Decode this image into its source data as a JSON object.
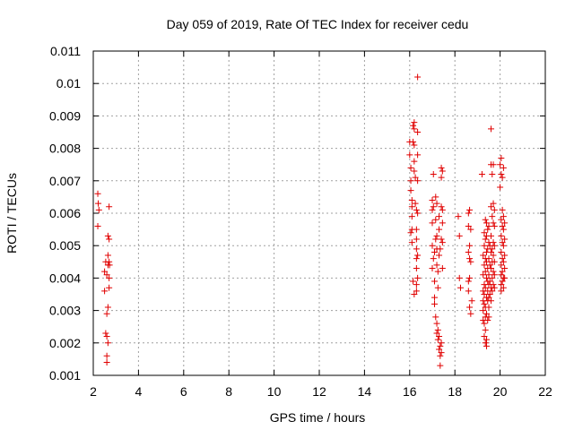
{
  "chart_data": {
    "type": "scatter",
    "title": "Day 059 of 2019, Rate Of TEC Index for receiver cedu",
    "xlabel": "GPS time / hours",
    "ylabel": "ROTI / TECUs",
    "xlim": [
      2,
      22
    ],
    "ylim": [
      0.001,
      0.011
    ],
    "xticks": [
      2,
      4,
      6,
      8,
      10,
      12,
      14,
      16,
      18,
      20,
      22
    ],
    "xtick_labels": [
      "2",
      "4",
      "6",
      "8",
      "10",
      "12",
      "14",
      "16",
      "18",
      "20",
      "22"
    ],
    "yticks": [
      0.001,
      0.002,
      0.003,
      0.004,
      0.005,
      0.006,
      0.007,
      0.008,
      0.009,
      0.01,
      0.011
    ],
    "ytick_labels": [
      "0.001",
      "0.002",
      "0.003",
      "0.004",
      "0.005",
      "0.006",
      "0.007",
      "0.008",
      "0.009",
      "0.01",
      "0.011"
    ],
    "grid": true,
    "marker": "+",
    "color": "#e00000",
    "series": [
      {
        "name": "ROTI",
        "points": [
          [
            2.2,
            0.0066
          ],
          [
            2.22,
            0.0063
          ],
          [
            2.25,
            0.0061
          ],
          [
            2.2,
            0.0056
          ],
          [
            2.5,
            0.0042
          ],
          [
            2.5,
            0.0036
          ],
          [
            2.55,
            0.0045
          ],
          [
            2.6,
            0.0041
          ],
          [
            2.55,
            0.0023
          ],
          [
            2.6,
            0.0022
          ],
          [
            2.6,
            0.0016
          ],
          [
            2.6,
            0.0014
          ],
          [
            2.65,
            0.0053
          ],
          [
            2.65,
            0.0047
          ],
          [
            2.65,
            0.0044
          ],
          [
            2.7,
            0.0062
          ],
          [
            2.7,
            0.0052
          ],
          [
            2.7,
            0.0045
          ],
          [
            2.7,
            0.004
          ],
          [
            2.7,
            0.0037
          ],
          [
            2.65,
            0.0031
          ],
          [
            2.6,
            0.0029
          ],
          [
            2.65,
            0.002
          ],
          [
            2.72,
            0.0044
          ],
          [
            16.0,
            0.0082
          ],
          [
            16.0,
            0.0078
          ],
          [
            16.05,
            0.0074
          ],
          [
            16.05,
            0.007
          ],
          [
            16.05,
            0.0067
          ],
          [
            16.1,
            0.0064
          ],
          [
            16.1,
            0.0062
          ],
          [
            16.1,
            0.0059
          ],
          [
            16.1,
            0.0055
          ],
          [
            16.05,
            0.0054
          ],
          [
            16.1,
            0.0051
          ],
          [
            16.15,
            0.0082
          ],
          [
            16.15,
            0.0087
          ],
          [
            16.2,
            0.0088
          ],
          [
            16.2,
            0.0086
          ],
          [
            16.2,
            0.0081
          ],
          [
            16.2,
            0.0076
          ],
          [
            16.2,
            0.0073
          ],
          [
            16.15,
            0.0039
          ],
          [
            16.2,
            0.0035
          ],
          [
            16.25,
            0.0071
          ],
          [
            16.25,
            0.0063
          ],
          [
            16.3,
            0.0061
          ],
          [
            16.3,
            0.0055
          ],
          [
            16.3,
            0.0052
          ],
          [
            16.3,
            0.0049
          ],
          [
            16.3,
            0.0046
          ],
          [
            16.3,
            0.0043
          ],
          [
            16.3,
            0.0038
          ],
          [
            16.3,
            0.0036
          ],
          [
            16.35,
            0.0102
          ],
          [
            16.35,
            0.0085
          ],
          [
            16.35,
            0.0078
          ],
          [
            16.35,
            0.007
          ],
          [
            16.35,
            0.006
          ],
          [
            16.35,
            0.0047
          ],
          [
            16.35,
            0.004
          ],
          [
            17.0,
            0.0064
          ],
          [
            17.0,
            0.0061
          ],
          [
            17.0,
            0.0057
          ],
          [
            17.0,
            0.005
          ],
          [
            17.0,
            0.0043
          ],
          [
            17.05,
            0.0072
          ],
          [
            17.05,
            0.0062
          ],
          [
            17.05,
            0.0046
          ],
          [
            17.1,
            0.0048
          ],
          [
            17.1,
            0.0039
          ],
          [
            17.1,
            0.0034
          ],
          [
            17.1,
            0.0032
          ],
          [
            17.15,
            0.0065
          ],
          [
            17.15,
            0.0058
          ],
          [
            17.15,
            0.0052
          ],
          [
            17.15,
            0.0028
          ],
          [
            17.2,
            0.0063
          ],
          [
            17.2,
            0.0053
          ],
          [
            17.2,
            0.0049
          ],
          [
            17.2,
            0.0044
          ],
          [
            17.2,
            0.0026
          ],
          [
            17.2,
            0.0023
          ],
          [
            17.25,
            0.0042
          ],
          [
            17.25,
            0.0037
          ],
          [
            17.25,
            0.0024
          ],
          [
            17.25,
            0.0021
          ],
          [
            17.3,
            0.0059
          ],
          [
            17.3,
            0.0055
          ],
          [
            17.3,
            0.0047
          ],
          [
            17.3,
            0.0022
          ],
          [
            17.3,
            0.0018
          ],
          [
            17.35,
            0.0049
          ],
          [
            17.35,
            0.0019
          ],
          [
            17.35,
            0.0016
          ],
          [
            17.35,
            0.0013
          ],
          [
            17.4,
            0.0074
          ],
          [
            17.4,
            0.0071
          ],
          [
            17.4,
            0.0062
          ],
          [
            17.4,
            0.0052
          ],
          [
            17.4,
            0.002
          ],
          [
            17.4,
            0.0017
          ],
          [
            17.45,
            0.0073
          ],
          [
            17.45,
            0.0061
          ],
          [
            17.45,
            0.0057
          ],
          [
            17.45,
            0.0051
          ],
          [
            17.45,
            0.0043
          ],
          [
            18.15,
            0.0059
          ],
          [
            18.2,
            0.0053
          ],
          [
            18.2,
            0.004
          ],
          [
            18.25,
            0.0037
          ],
          [
            18.6,
            0.006
          ],
          [
            18.6,
            0.0056
          ],
          [
            18.6,
            0.0048
          ],
          [
            18.6,
            0.0039
          ],
          [
            18.6,
            0.0036
          ],
          [
            18.65,
            0.0061
          ],
          [
            18.65,
            0.005
          ],
          [
            18.65,
            0.0046
          ],
          [
            18.65,
            0.004
          ],
          [
            18.65,
            0.0031
          ],
          [
            18.7,
            0.0055
          ],
          [
            18.7,
            0.0045
          ],
          [
            18.7,
            0.0029
          ],
          [
            18.75,
            0.0033
          ],
          [
            19.2,
            0.0072
          ],
          [
            19.25,
            0.0047
          ],
          [
            19.25,
            0.0041
          ],
          [
            19.25,
            0.0036
          ],
          [
            19.25,
            0.0033
          ],
          [
            19.25,
            0.003
          ],
          [
            19.25,
            0.0027
          ],
          [
            19.3,
            0.0054
          ],
          [
            19.3,
            0.005
          ],
          [
            19.3,
            0.0044
          ],
          [
            19.3,
            0.0038
          ],
          [
            19.3,
            0.0035
          ],
          [
            19.3,
            0.0032
          ],
          [
            19.3,
            0.0026
          ],
          [
            19.3,
            0.0022
          ],
          [
            19.35,
            0.0058
          ],
          [
            19.35,
            0.0052
          ],
          [
            19.35,
            0.0046
          ],
          [
            19.35,
            0.0042
          ],
          [
            19.35,
            0.0037
          ],
          [
            19.35,
            0.0031
          ],
          [
            19.35,
            0.0028
          ],
          [
            19.35,
            0.0024
          ],
          [
            19.35,
            0.002
          ],
          [
            19.4,
            0.0057
          ],
          [
            19.4,
            0.0053
          ],
          [
            19.4,
            0.0048
          ],
          [
            19.4,
            0.0045
          ],
          [
            19.4,
            0.004
          ],
          [
            19.4,
            0.0034
          ],
          [
            19.4,
            0.0029
          ],
          [
            19.4,
            0.0021
          ],
          [
            19.4,
            0.0019
          ],
          [
            19.45,
            0.0055
          ],
          [
            19.45,
            0.0049
          ],
          [
            19.45,
            0.0043
          ],
          [
            19.45,
            0.0039
          ],
          [
            19.45,
            0.0036
          ],
          [
            19.45,
            0.0033
          ],
          [
            19.45,
            0.0027
          ],
          [
            19.5,
            0.0056
          ],
          [
            19.5,
            0.0051
          ],
          [
            19.5,
            0.0046
          ],
          [
            19.5,
            0.0041
          ],
          [
            19.5,
            0.0038
          ],
          [
            19.5,
            0.0034
          ],
          [
            19.5,
            0.0031
          ],
          [
            19.5,
            0.0028
          ],
          [
            19.55,
            0.005
          ],
          [
            19.55,
            0.0044
          ],
          [
            19.55,
            0.0039
          ],
          [
            19.55,
            0.0035
          ],
          [
            19.6,
            0.0086
          ],
          [
            19.6,
            0.0075
          ],
          [
            19.6,
            0.0062
          ],
          [
            19.6,
            0.0053
          ],
          [
            19.6,
            0.0048
          ],
          [
            19.6,
            0.0043
          ],
          [
            19.6,
            0.0037
          ],
          [
            19.6,
            0.0033
          ],
          [
            19.65,
            0.0072
          ],
          [
            19.65,
            0.0059
          ],
          [
            19.65,
            0.0049
          ],
          [
            19.65,
            0.0045
          ],
          [
            19.65,
            0.004
          ],
          [
            19.65,
            0.0036
          ],
          [
            19.7,
            0.0075
          ],
          [
            19.7,
            0.0063
          ],
          [
            19.7,
            0.0057
          ],
          [
            19.7,
            0.0051
          ],
          [
            19.7,
            0.0047
          ],
          [
            19.7,
            0.0042
          ],
          [
            19.7,
            0.0038
          ],
          [
            19.75,
            0.0061
          ],
          [
            19.75,
            0.0056
          ],
          [
            19.75,
            0.005
          ],
          [
            19.75,
            0.0045
          ],
          [
            19.75,
            0.0041
          ],
          [
            19.75,
            0.0037
          ],
          [
            20.0,
            0.0075
          ],
          [
            20.0,
            0.0068
          ],
          [
            20.05,
            0.0077
          ],
          [
            20.05,
            0.0072
          ],
          [
            20.05,
            0.0058
          ],
          [
            20.05,
            0.0053
          ],
          [
            20.05,
            0.0048
          ],
          [
            20.05,
            0.0044
          ],
          [
            20.05,
            0.0041
          ],
          [
            20.05,
            0.0038
          ],
          [
            20.05,
            0.0036
          ],
          [
            20.1,
            0.0071
          ],
          [
            20.1,
            0.0061
          ],
          [
            20.1,
            0.0056
          ],
          [
            20.1,
            0.0051
          ],
          [
            20.1,
            0.0046
          ],
          [
            20.1,
            0.0042
          ],
          [
            20.1,
            0.0039
          ],
          [
            20.15,
            0.0074
          ],
          [
            20.15,
            0.0059
          ],
          [
            20.15,
            0.0055
          ],
          [
            20.15,
            0.005
          ],
          [
            20.15,
            0.0045
          ],
          [
            20.15,
            0.004
          ],
          [
            20.15,
            0.0037
          ],
          [
            20.2,
            0.0057
          ],
          [
            20.2,
            0.0052
          ],
          [
            20.2,
            0.0047
          ],
          [
            20.2,
            0.0043
          ],
          [
            20.2,
            0.004
          ]
        ]
      }
    ]
  }
}
